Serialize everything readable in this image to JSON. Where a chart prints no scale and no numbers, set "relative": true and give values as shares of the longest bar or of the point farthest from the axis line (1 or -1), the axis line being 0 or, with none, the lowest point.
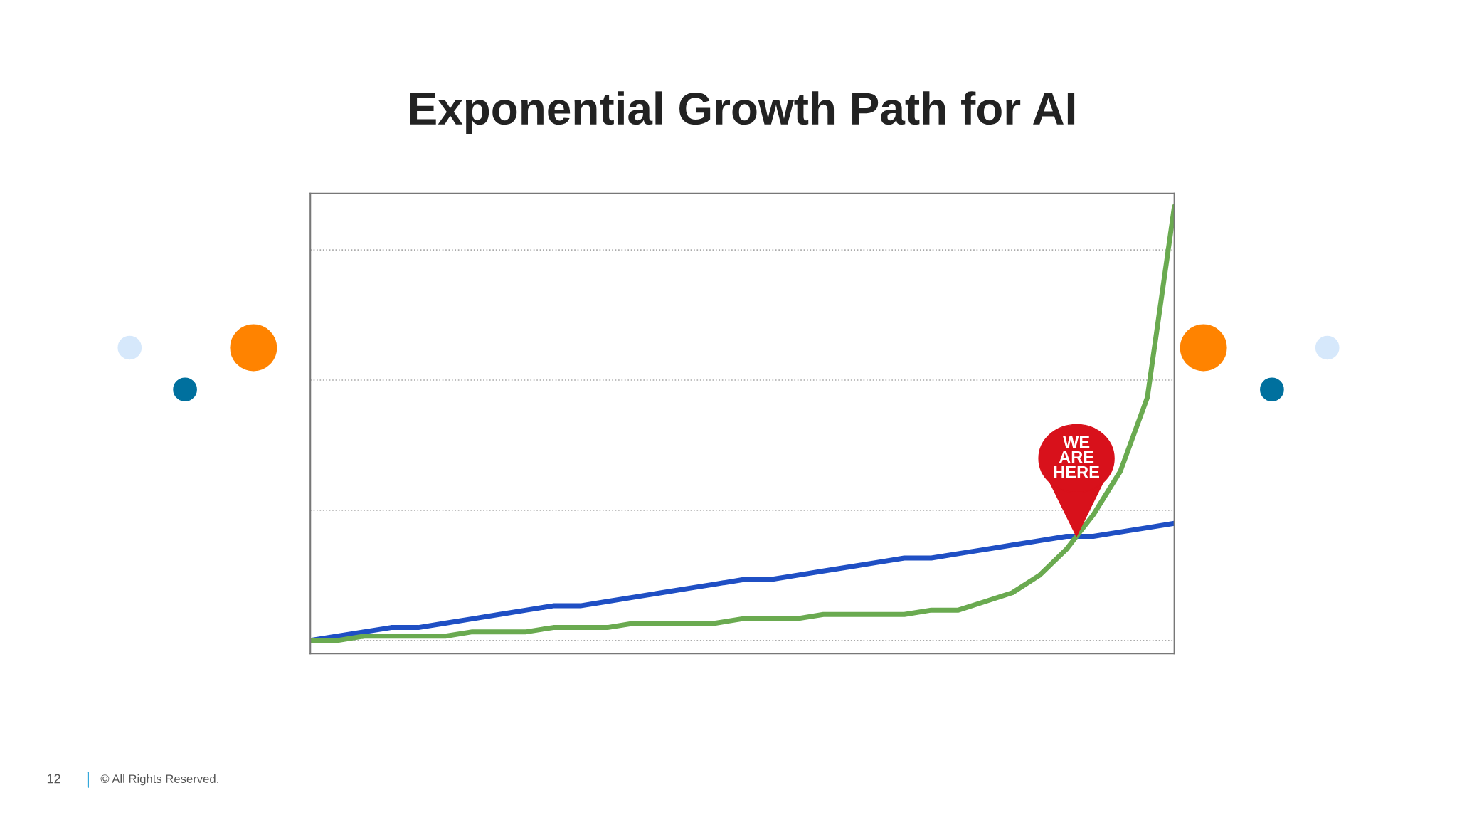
{
  "chart_data": {
    "type": "line",
    "title": "Exponential Growth Path for AI",
    "relative": true,
    "categories": [
      null,
      null,
      null,
      null,
      null,
      null,
      null,
      null,
      null,
      null,
      null,
      null,
      null,
      null,
      null,
      null,
      null,
      null,
      null,
      null,
      null,
      null,
      null,
      null,
      null,
      null,
      null,
      null,
      null,
      null,
      null,
      null,
      null
    ],
    "series": [
      {
        "color": "#1f4fc4",
        "values": [
          0,
          0.01,
          0.02,
          0.03,
          0.03,
          0.04,
          0.05,
          0.06,
          0.07,
          0.08,
          0.08,
          0.09,
          0.1,
          0.11,
          0.12,
          0.13,
          0.14,
          0.14,
          0.15,
          0.16,
          0.17,
          0.18,
          0.19,
          0.19,
          0.2,
          0.21,
          0.22,
          0.23,
          0.24,
          0.24,
          0.25,
          0.26,
          0.27
        ]
      },
      {
        "color": "#6aaa50",
        "values": [
          0,
          0,
          0.01,
          0.01,
          0.01,
          0.01,
          0.02,
          0.02,
          0.02,
          0.03,
          0.03,
          0.03,
          0.04,
          0.04,
          0.04,
          0.04,
          0.05,
          0.05,
          0.05,
          0.06,
          0.06,
          0.06,
          0.06,
          0.07,
          0.07,
          0.09,
          0.11,
          0.15,
          0.21,
          0.29,
          0.39,
          0.56,
          1.0
        ]
      }
    ],
    "annotations": [
      "WE ARE HERE",
      "12",
      "© All Rights Reserved."
    ],
    "grid": "y",
    "tick_labels": false,
    "marker": "none",
    "line_style": "solid"
  }
}
